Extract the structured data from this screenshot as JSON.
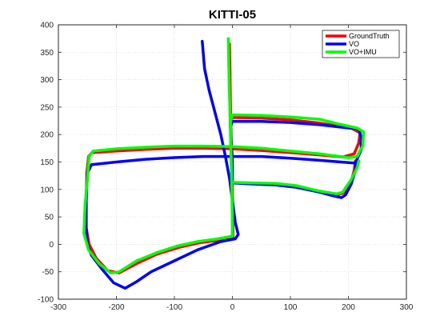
{
  "chart_data": {
    "type": "line",
    "title": "KITTI-05",
    "xlabel": "",
    "ylabel": "",
    "xlim": [
      -300,
      300
    ],
    "ylim": [
      -100,
      400
    ],
    "xticks": [
      -300,
      -200,
      -100,
      0,
      100,
      200,
      300
    ],
    "yticks": [
      -100,
      -50,
      0,
      50,
      100,
      150,
      200,
      250,
      300,
      350,
      400
    ],
    "grid": true,
    "legend_position": "top-right",
    "series": [
      {
        "name": "GroundTruth",
        "color": "#ff0000",
        "points": [
          [
            -5,
            365
          ],
          [
            -4,
            300
          ],
          [
            -3,
            235
          ],
          [
            -2,
            190
          ],
          [
            -1,
            150
          ],
          [
            0,
            100
          ],
          [
            1,
            50
          ],
          [
            1,
            12
          ],
          [
            -20,
            8
          ],
          [
            -55,
            3
          ],
          [
            -90,
            -5
          ],
          [
            -130,
            -18
          ],
          [
            -165,
            -35
          ],
          [
            -195,
            -52
          ],
          [
            -215,
            -48
          ],
          [
            -235,
            -25
          ],
          [
            -247,
            0
          ],
          [
            -252,
            30
          ],
          [
            -252,
            80
          ],
          [
            -251,
            130
          ],
          [
            -248,
            160
          ],
          [
            -242,
            167
          ],
          [
            -200,
            170
          ],
          [
            -150,
            173
          ],
          [
            -100,
            175
          ],
          [
            -50,
            175
          ],
          [
            0,
            174
          ],
          [
            50,
            171
          ],
          [
            100,
            167
          ],
          [
            150,
            163
          ],
          [
            190,
            159
          ],
          [
            210,
            165
          ],
          [
            218,
            185
          ],
          [
            220,
            203
          ],
          [
            205,
            212
          ],
          [
            150,
            221
          ],
          [
            100,
            227
          ],
          [
            50,
            230
          ],
          [
            0,
            231
          ],
          [
            -4,
            220
          ],
          [
            -2,
            190
          ],
          [
            0,
            160
          ],
          [
            0,
            112
          ],
          [
            30,
            112
          ],
          [
            75,
            110
          ],
          [
            110,
            106
          ],
          [
            150,
            97
          ],
          [
            180,
            90
          ],
          [
            192,
            94
          ],
          [
            205,
            115
          ],
          [
            210,
            135
          ],
          [
            212,
            152
          ]
        ]
      },
      {
        "name": "VO",
        "color": "#0000ff",
        "points": [
          [
            -52,
            370
          ],
          [
            -48,
            320
          ],
          [
            -40,
            280
          ],
          [
            -30,
            240
          ],
          [
            -20,
            200
          ],
          [
            -12,
            160
          ],
          [
            -5,
            120
          ],
          [
            0,
            80
          ],
          [
            5,
            40
          ],
          [
            10,
            18
          ],
          [
            5,
            10
          ],
          [
            -20,
            5
          ],
          [
            -60,
            -10
          ],
          [
            -100,
            -30
          ],
          [
            -140,
            -50
          ],
          [
            -165,
            -68
          ],
          [
            -185,
            -80
          ],
          [
            -205,
            -70
          ],
          [
            -225,
            -45
          ],
          [
            -243,
            -20
          ],
          [
            -250,
            0
          ],
          [
            -252,
            30
          ],
          [
            -252,
            80
          ],
          [
            -250,
            130
          ],
          [
            -243,
            145
          ],
          [
            -200,
            150
          ],
          [
            -150,
            155
          ],
          [
            -100,
            158
          ],
          [
            -50,
            160
          ],
          [
            0,
            160
          ],
          [
            50,
            160
          ],
          [
            100,
            157
          ],
          [
            150,
            153
          ],
          [
            200,
            149
          ],
          [
            212,
            148
          ],
          [
            222,
            172
          ],
          [
            222,
            195
          ],
          [
            218,
            210
          ],
          [
            200,
            212
          ],
          [
            150,
            218
          ],
          [
            100,
            222
          ],
          [
            50,
            224
          ],
          [
            0,
            224
          ],
          [
            -3,
            215
          ],
          [
            -2,
            180
          ],
          [
            0,
            140
          ],
          [
            0,
            112
          ],
          [
            30,
            110
          ],
          [
            75,
            108
          ],
          [
            110,
            104
          ],
          [
            150,
            95
          ],
          [
            175,
            88
          ],
          [
            188,
            85
          ],
          [
            195,
            90
          ],
          [
            205,
            110
          ],
          [
            212,
            135
          ],
          [
            213,
            150
          ]
        ]
      },
      {
        "name": "VO+IMU",
        "color": "#00ff00",
        "points": [
          [
            -7,
            375
          ],
          [
            -6,
            320
          ],
          [
            -5,
            270
          ],
          [
            -4,
            232
          ],
          [
            -3,
            190
          ],
          [
            -2,
            150
          ],
          [
            -1,
            100
          ],
          [
            0,
            50
          ],
          [
            0,
            15
          ],
          [
            -25,
            10
          ],
          [
            -60,
            5
          ],
          [
            -95,
            -3
          ],
          [
            -130,
            -15
          ],
          [
            -165,
            -30
          ],
          [
            -195,
            -50
          ],
          [
            -210,
            -52
          ],
          [
            -230,
            -35
          ],
          [
            -248,
            -10
          ],
          [
            -256,
            20
          ],
          [
            -254,
            70
          ],
          [
            -250,
            120
          ],
          [
            -247,
            160
          ],
          [
            -240,
            170
          ],
          [
            -200,
            174
          ],
          [
            -150,
            177
          ],
          [
            -100,
            179
          ],
          [
            -50,
            179
          ],
          [
            0,
            178
          ],
          [
            50,
            175
          ],
          [
            100,
            170
          ],
          [
            150,
            165
          ],
          [
            200,
            158
          ],
          [
            215,
            160
          ],
          [
            225,
            180
          ],
          [
            226,
            205
          ],
          [
            215,
            212
          ],
          [
            180,
            220
          ],
          [
            150,
            228
          ],
          [
            100,
            232
          ],
          [
            50,
            235
          ],
          [
            0,
            236
          ],
          [
            -3,
            224
          ],
          [
            -3,
            190
          ],
          [
            -2,
            160
          ],
          [
            -1,
            113
          ],
          [
            30,
            112
          ],
          [
            75,
            111
          ],
          [
            110,
            107
          ],
          [
            150,
            97
          ],
          [
            180,
            92
          ],
          [
            190,
            95
          ],
          [
            205,
            118
          ],
          [
            215,
            140
          ],
          [
            218,
            152
          ]
        ]
      }
    ]
  }
}
